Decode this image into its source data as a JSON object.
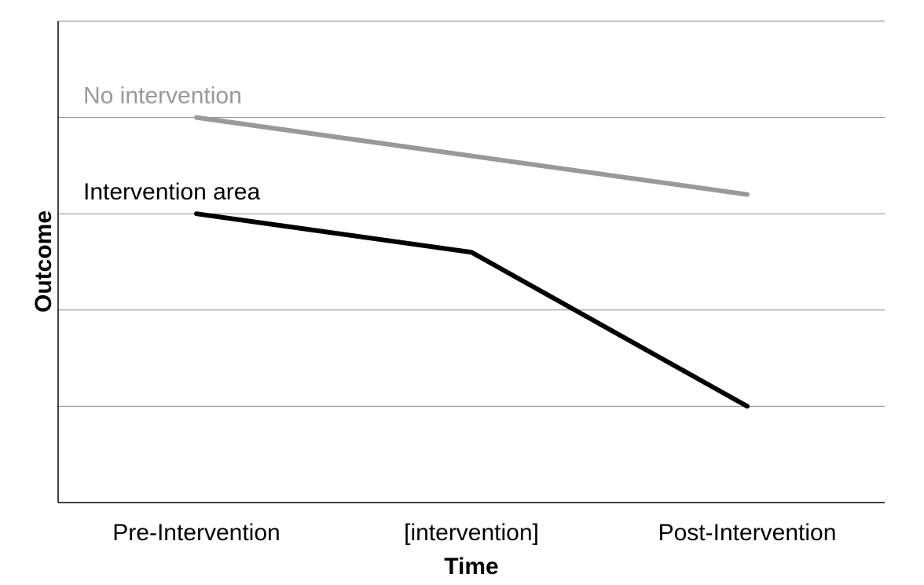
{
  "chart_data": {
    "type": "line",
    "title": "",
    "xlabel": "Time",
    "ylabel": "Outcome",
    "categories": [
      "Pre-Intervention",
      "[intervention]",
      "Post-Intervention"
    ],
    "ylim": [
      0,
      5
    ],
    "yticks": [
      1,
      2,
      3,
      4,
      5
    ],
    "y_tick_labels_shown": false,
    "grid": "horizontal",
    "legend": "inline labels",
    "series": [
      {
        "name": "No intervention",
        "color": "#999999",
        "points": [
          {
            "x": "Pre-Intervention",
            "y": 4.0
          },
          {
            "x": "Post-Intervention",
            "y": 3.2
          }
        ]
      },
      {
        "name": "Intervention area",
        "color": "#000000",
        "points": [
          {
            "x": "Pre-Intervention",
            "y": 3.0
          },
          {
            "x": "[intervention]",
            "y": 2.6
          },
          {
            "x": "Post-Intervention",
            "y": 1.0
          }
        ]
      }
    ]
  }
}
